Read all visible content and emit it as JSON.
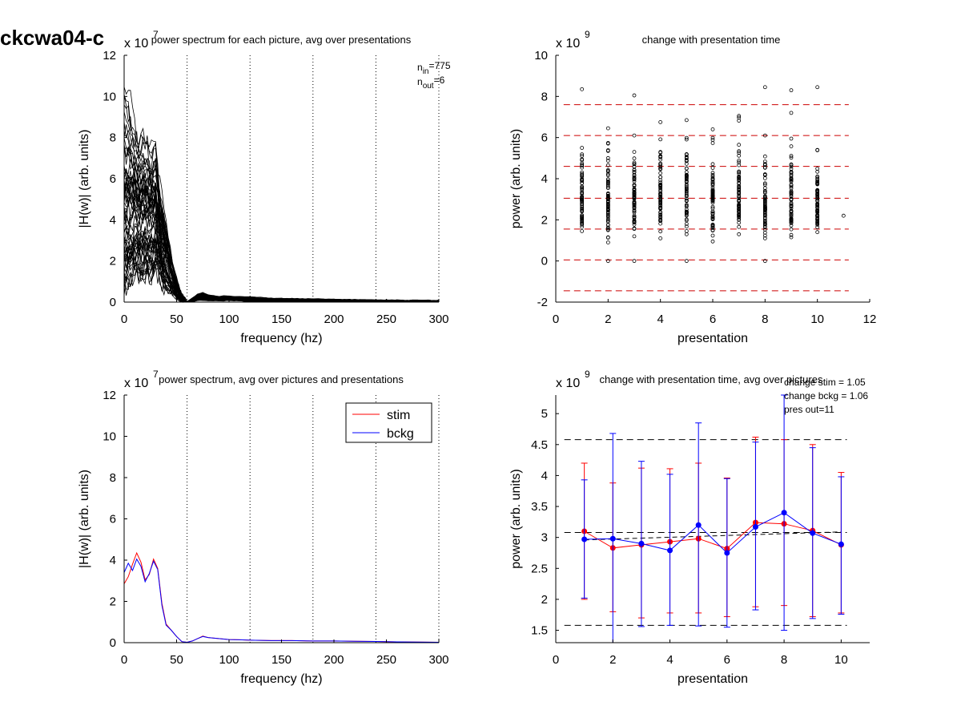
{
  "figure_label": "ckcwa04-c",
  "chart_data": [
    {
      "id": "top-left",
      "type": "line",
      "title": "power spectrum for each picture, avg over presentations",
      "xlabel": "frequency (hz)",
      "ylabel": "|H(w)| (arb. units)",
      "y_exponent": "x 10",
      "y_exponent_power": "7",
      "xlim": [
        0,
        300
      ],
      "ylim": [
        0,
        12
      ],
      "xticks": [
        0,
        50,
        100,
        150,
        200,
        250,
        300
      ],
      "yticks": [
        0,
        2,
        4,
        6,
        8,
        10,
        12
      ],
      "vlines": [
        60,
        120,
        180,
        240,
        300
      ],
      "annotations": [
        {
          "base": "n",
          "sub": "in",
          "value": "=775"
        },
        {
          "base": "n",
          "sub": "out",
          "value": "=6"
        }
      ],
      "series_count": 60,
      "envelope": {
        "x": [
          0,
          5,
          10,
          15,
          20,
          25,
          30,
          35,
          40,
          45,
          50,
          55,
          60,
          65,
          70,
          75,
          80,
          90,
          100,
          120,
          150,
          200,
          250,
          300
        ],
        "low": [
          0.8,
          1.0,
          1.5,
          1.2,
          1.4,
          1.2,
          1.6,
          1.2,
          0.6,
          0.4,
          0.2,
          0.05,
          0.0,
          0.02,
          0.1,
          0.1,
          0.08,
          0.08,
          0.08,
          0.05,
          0.05,
          0.03,
          0.02,
          0.0
        ],
        "mid": [
          3.8,
          3.9,
          4.4,
          4.0,
          4.2,
          4.0,
          4.3,
          3.0,
          2.2,
          1.3,
          0.6,
          0.1,
          0.0,
          0.1,
          0.25,
          0.25,
          0.2,
          0.15,
          0.15,
          0.12,
          0.1,
          0.08,
          0.05,
          0.03
        ],
        "high": [
          10.8,
          10.5,
          8.8,
          8.2,
          8.4,
          7.7,
          7.8,
          5.2,
          4.0,
          2.3,
          1.2,
          0.3,
          0.02,
          0.2,
          0.4,
          0.5,
          0.35,
          0.28,
          0.3,
          0.25,
          0.18,
          0.13,
          0.1,
          0.08
        ]
      }
    },
    {
      "id": "top-right",
      "type": "scatter",
      "title": "change with presentation time",
      "xlabel": "presentation",
      "ylabel": "power (arb. units)",
      "y_exponent": "x 10",
      "y_exponent_power": "9",
      "xlim": [
        0,
        12
      ],
      "ylim": [
        -2,
        10
      ],
      "xticks": [
        0,
        2,
        4,
        6,
        8,
        10,
        12
      ],
      "yticks": [
        -2,
        0,
        2,
        4,
        6,
        8,
        10
      ],
      "hlines": [
        7.6,
        6.1,
        4.6,
        3.05,
        1.55,
        0.05,
        -1.45
      ],
      "columns": [
        {
          "x": 1,
          "min": 1.45,
          "max": 5.5,
          "outliers": [
            8.35
          ]
        },
        {
          "x": 2,
          "min": 0.9,
          "max": 6.45,
          "outliers": [
            0.0
          ]
        },
        {
          "x": 3,
          "min": 1.2,
          "max": 6.1,
          "outliers": [
            8.05,
            0.0
          ]
        },
        {
          "x": 4,
          "min": 1.1,
          "max": 6.75,
          "outliers": []
        },
        {
          "x": 5,
          "min": 1.3,
          "max": 6.85,
          "outliers": [
            0.0
          ]
        },
        {
          "x": 6,
          "min": 0.95,
          "max": 6.4,
          "outliers": []
        },
        {
          "x": 7,
          "min": 1.3,
          "max": 7.05,
          "outliers": []
        },
        {
          "x": 8,
          "min": 1.1,
          "max": 6.1,
          "outliers": [
            8.45,
            0.0
          ]
        },
        {
          "x": 9,
          "min": 1.15,
          "max": 5.95,
          "outliers": [
            8.3,
            7.2
          ]
        },
        {
          "x": 10,
          "min": 1.4,
          "max": 5.4,
          "outliers": [
            8.45
          ]
        },
        {
          "x": 11,
          "min": 2.2,
          "max": 2.2,
          "outliers": []
        }
      ]
    },
    {
      "id": "bottom-left",
      "type": "line",
      "title": "power spectrum, avg over pictures and presentations",
      "xlabel": "frequency (hz)",
      "ylabel": "|H(w)| (arb. units)",
      "y_exponent": "x 10",
      "y_exponent_power": "7",
      "xlim": [
        0,
        300
      ],
      "ylim": [
        0,
        12
      ],
      "xticks": [
        0,
        50,
        100,
        150,
        200,
        250,
        300
      ],
      "yticks": [
        0,
        2,
        4,
        6,
        8,
        10,
        12
      ],
      "vlines": [
        60,
        120,
        180,
        240,
        300
      ],
      "legend": "top-right",
      "series": [
        {
          "name": "stim",
          "color": "#ff0000",
          "x": [
            0,
            4,
            8,
            12,
            16,
            20,
            24,
            28,
            32,
            36,
            40,
            45,
            50,
            55,
            60,
            65,
            70,
            75,
            80,
            90,
            100,
            110,
            120,
            140,
            160,
            180,
            200,
            220,
            240,
            250,
            260,
            280,
            300
          ],
          "values": [
            2.85,
            3.2,
            3.8,
            4.35,
            3.9,
            3.05,
            3.3,
            4.05,
            3.6,
            1.9,
            0.9,
            0.6,
            0.3,
            0.05,
            0.02,
            0.08,
            0.2,
            0.32,
            0.25,
            0.2,
            0.15,
            0.14,
            0.12,
            0.1,
            0.1,
            0.08,
            0.08,
            0.07,
            0.06,
            0.05,
            0.04,
            0.03,
            0.02
          ]
        },
        {
          "name": "bckg",
          "color": "#0000ff",
          "x": [
            0,
            4,
            8,
            12,
            16,
            20,
            24,
            28,
            32,
            36,
            40,
            45,
            50,
            55,
            60,
            65,
            70,
            75,
            80,
            90,
            100,
            110,
            120,
            140,
            160,
            180,
            200,
            220,
            240,
            250,
            260,
            280,
            300
          ],
          "values": [
            3.4,
            3.85,
            3.5,
            4.05,
            3.7,
            2.95,
            3.35,
            3.95,
            3.55,
            1.8,
            0.85,
            0.6,
            0.3,
            0.05,
            0.02,
            0.08,
            0.2,
            0.3,
            0.25,
            0.2,
            0.15,
            0.14,
            0.12,
            0.1,
            0.1,
            0.08,
            0.08,
            0.07,
            0.06,
            0.05,
            0.04,
            0.03,
            0.02
          ]
        }
      ]
    },
    {
      "id": "bottom-right",
      "type": "line",
      "title": "change with presentation time, avg over pictures",
      "xlabel": "presentation",
      "ylabel": "power (arb. units)",
      "y_exponent": "x 10",
      "y_exponent_power": "9",
      "xlim": [
        0,
        11
      ],
      "ylim": [
        1.3,
        5.3
      ],
      "xticks": [
        0,
        2,
        4,
        6,
        8,
        10
      ],
      "yticks": [
        1.5,
        2,
        2.5,
        3,
        3.5,
        4,
        4.5,
        5
      ],
      "hlines": [
        4.58,
        3.08,
        1.58
      ],
      "annotations": [
        "change stim = 1.05",
        "change bckg = 1.06",
        "pres out=11"
      ],
      "series": [
        {
          "name": "stim",
          "color": "#ff0000",
          "x": [
            1,
            2,
            3,
            4,
            5,
            6,
            7,
            8,
            9,
            10
          ],
          "values": [
            3.1,
            2.83,
            2.88,
            2.93,
            2.98,
            2.82,
            3.24,
            3.22,
            3.11,
            2.88
          ],
          "err_low": [
            2.0,
            1.8,
            1.7,
            1.78,
            1.78,
            1.72,
            1.88,
            1.9,
            1.72,
            1.78
          ],
          "err_high": [
            4.2,
            3.88,
            4.12,
            4.11,
            4.2,
            3.96,
            4.62,
            4.58,
            4.5,
            4.05
          ]
        },
        {
          "name": "bckg",
          "color": "#0000ff",
          "x": [
            1,
            2,
            3,
            4,
            5,
            6,
            7,
            8,
            9,
            10
          ],
          "values": [
            2.97,
            2.98,
            2.9,
            2.79,
            3.2,
            2.75,
            3.17,
            3.4,
            3.07,
            2.89
          ],
          "err_low": [
            2.02,
            1.3,
            1.56,
            1.58,
            1.57,
            1.55,
            1.83,
            1.5,
            1.69,
            1.76
          ],
          "err_high": [
            3.93,
            4.68,
            4.23,
            4.02,
            4.85,
            3.95,
            4.54,
            5.3,
            4.45,
            3.98
          ]
        }
      ],
      "trend": {
        "x": [
          1,
          10
        ],
        "values": [
          2.96,
          3.09
        ]
      }
    }
  ]
}
